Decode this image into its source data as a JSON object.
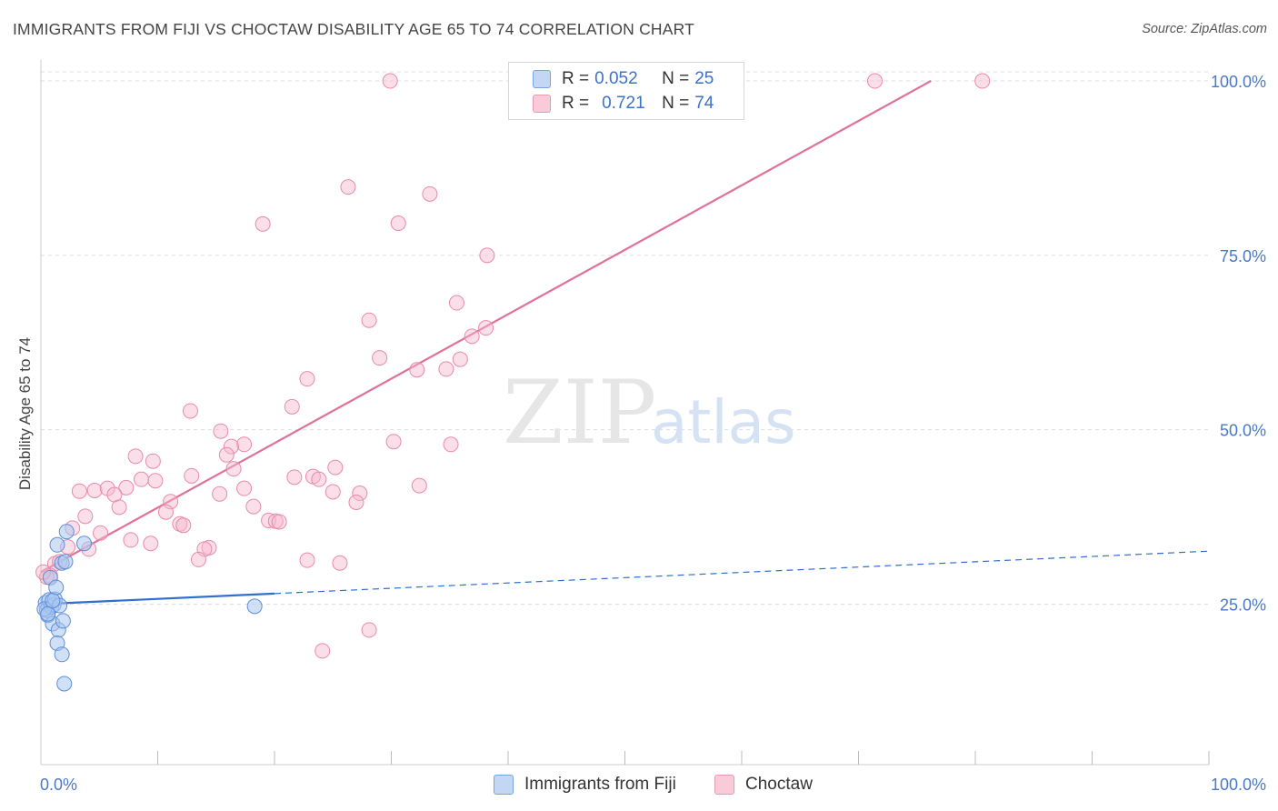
{
  "title": "IMMIGRANTS FROM FIJI VS CHOCTAW DISABILITY AGE 65 TO 74 CORRELATION CHART",
  "source": "Source: ZipAtlas.com",
  "watermark": {
    "zip": "ZIP",
    "atlas": "atlas"
  },
  "colors": {
    "blue_fill": "#aac7f0",
    "blue_stroke": "#5d8fd8",
    "blue_line": "#2f6fcf",
    "pink_fill": "#f6b9cb",
    "pink_stroke": "#e88aa8",
    "pink_line": "#e0709a",
    "tick_text": "#4a78c8",
    "grid": "#dddddd"
  },
  "legend": {
    "rows": [
      {
        "r_label": "R =",
        "r_value": "0.052",
        "n_label": "N =",
        "n_value": "25"
      },
      {
        "r_label": "R =",
        "r_value": "0.721",
        "n_label": "N =",
        "n_value": "74"
      }
    ],
    "bottom": [
      "Immigrants from Fiji",
      "Choctaw"
    ]
  },
  "chart_data": {
    "type": "scatter",
    "title": "IMMIGRANTS FROM FIJI VS CHOCTAW DISABILITY AGE 65 TO 74 CORRELATION CHART",
    "xlabel": "",
    "ylabel": "Disability Age 65 to 74",
    "xlim": [
      0,
      100
    ],
    "ylim": [
      2,
      103
    ],
    "x_tick_labels": [
      "0.0%",
      "100.0%"
    ],
    "y_ticks": [
      25,
      50,
      75,
      100
    ],
    "y_tick_labels": [
      "25.0%",
      "50.0%",
      "75.0%",
      "100.0%"
    ],
    "grid": true,
    "legend_position": "top-center",
    "series": [
      {
        "name": "Immigrants from Fiji",
        "color": "blue",
        "points": [
          [
            0.4,
            25.2
          ],
          [
            0.5,
            24.1
          ],
          [
            0.6,
            23.4
          ],
          [
            0.7,
            25.6
          ],
          [
            0.8,
            28.8
          ],
          [
            0.9,
            24.6
          ],
          [
            1.0,
            22.2
          ],
          [
            1.1,
            24.9
          ],
          [
            1.2,
            25.7
          ],
          [
            1.3,
            27.4
          ],
          [
            1.4,
            33.5
          ],
          [
            1.5,
            21.3
          ],
          [
            1.4,
            19.4
          ],
          [
            1.6,
            24.8
          ],
          [
            1.8,
            30.9
          ],
          [
            1.8,
            17.8
          ],
          [
            1.9,
            22.6
          ],
          [
            2.0,
            13.6
          ],
          [
            2.1,
            31.1
          ],
          [
            2.2,
            35.4
          ],
          [
            3.7,
            33.7
          ],
          [
            18.3,
            24.7
          ],
          [
            0.3,
            24.3
          ],
          [
            0.6,
            23.6
          ],
          [
            1.0,
            25.5
          ]
        ],
        "trend": {
          "x0": 0,
          "y0": 25.0,
          "x1": 100,
          "y1": 32.6,
          "solid_until_x": 20
        }
      },
      {
        "name": "Choctaw",
        "color": "pink",
        "points": [
          [
            29.9,
            100
          ],
          [
            71.4,
            100
          ],
          [
            80.6,
            100
          ],
          [
            26.3,
            84.8
          ],
          [
            33.3,
            83.8
          ],
          [
            19.0,
            79.5
          ],
          [
            30.6,
            79.6
          ],
          [
            38.2,
            75.0
          ],
          [
            35.6,
            68.2
          ],
          [
            28.1,
            65.7
          ],
          [
            38.1,
            64.6
          ],
          [
            36.9,
            63.4
          ],
          [
            29.0,
            60.3
          ],
          [
            35.9,
            60.1
          ],
          [
            32.2,
            58.6
          ],
          [
            34.7,
            58.7
          ],
          [
            22.8,
            57.3
          ],
          [
            21.5,
            53.3
          ],
          [
            12.8,
            52.7
          ],
          [
            15.4,
            49.8
          ],
          [
            30.2,
            48.3
          ],
          [
            35.1,
            47.9
          ],
          [
            17.4,
            47.9
          ],
          [
            16.3,
            47.6
          ],
          [
            8.1,
            46.2
          ],
          [
            15.9,
            46.4
          ],
          [
            9.6,
            45.5
          ],
          [
            25.2,
            44.6
          ],
          [
            16.5,
            44.4
          ],
          [
            21.7,
            43.2
          ],
          [
            23.3,
            43.3
          ],
          [
            23.8,
            42.9
          ],
          [
            12.9,
            43.4
          ],
          [
            8.6,
            42.9
          ],
          [
            9.8,
            42.7
          ],
          [
            32.4,
            42.0
          ],
          [
            3.3,
            41.2
          ],
          [
            4.6,
            41.3
          ],
          [
            5.7,
            41.6
          ],
          [
            7.3,
            41.7
          ],
          [
            17.4,
            41.6
          ],
          [
            25.0,
            41.1
          ],
          [
            15.3,
            40.8
          ],
          [
            27.3,
            40.9
          ],
          [
            6.3,
            40.7
          ],
          [
            11.1,
            39.7
          ],
          [
            27.0,
            39.6
          ],
          [
            18.2,
            39.0
          ],
          [
            6.7,
            38.9
          ],
          [
            10.7,
            38.2
          ],
          [
            3.8,
            37.6
          ],
          [
            19.5,
            37.0
          ],
          [
            20.1,
            36.9
          ],
          [
            20.4,
            36.8
          ],
          [
            11.9,
            36.5
          ],
          [
            12.2,
            36.3
          ],
          [
            2.7,
            35.9
          ],
          [
            5.1,
            35.2
          ],
          [
            7.7,
            34.2
          ],
          [
            9.4,
            33.7
          ],
          [
            14.4,
            33.1
          ],
          [
            14.0,
            32.9
          ],
          [
            2.3,
            33.2
          ],
          [
            4.1,
            32.9
          ],
          [
            22.8,
            31.3
          ],
          [
            13.5,
            31.4
          ],
          [
            25.6,
            30.9
          ],
          [
            1.2,
            30.8
          ],
          [
            1.6,
            31.1
          ],
          [
            0.8,
            29.1
          ],
          [
            0.5,
            28.9
          ],
          [
            28.1,
            21.3
          ],
          [
            24.1,
            18.3
          ],
          [
            0.2,
            29.6
          ]
        ],
        "trend": {
          "x0": 0,
          "y0": 29.6,
          "x1": 76.2,
          "y1": 100
        }
      }
    ]
  }
}
